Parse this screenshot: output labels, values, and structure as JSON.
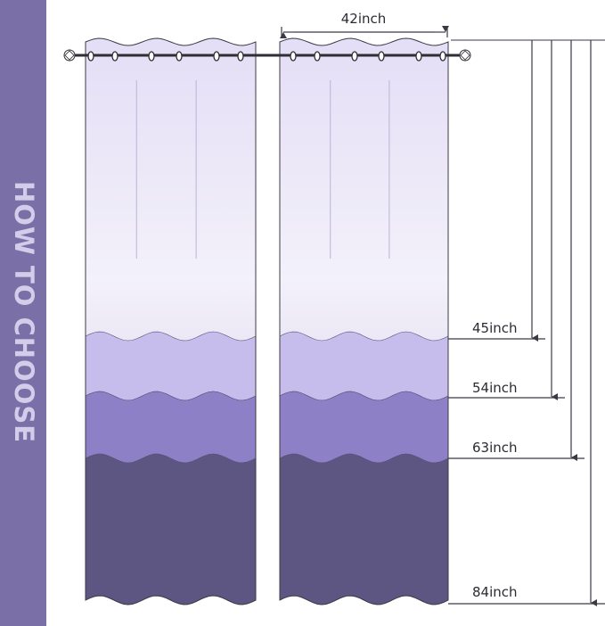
{
  "sidebar": {
    "title": "HOW TO CHOOSE"
  },
  "width_label": "42inch",
  "length_labels": [
    "45inch",
    "54inch",
    "63inch",
    "84inch"
  ],
  "colors": {
    "sidebar": "#7b6fa8",
    "sidebar_text": "#d4cdea",
    "band_top": "#ebe7f7",
    "band_light": "#c6bdec",
    "band_mid": "#8e80c6",
    "band_dark": "#5d5683",
    "line": "#3a3a44"
  },
  "icons": [
    "curtain-rod-icon",
    "finial-icon",
    "grommet-icon",
    "arrow-icon"
  ]
}
